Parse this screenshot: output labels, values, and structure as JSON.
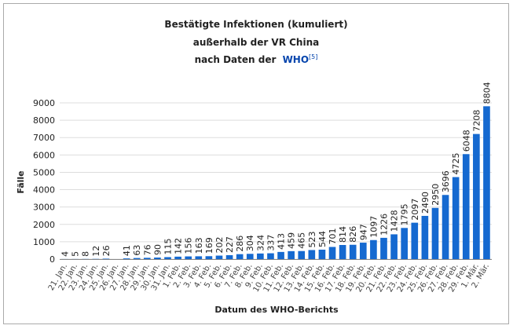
{
  "chart_data": {
    "type": "bar",
    "title_lines": [
      "Bestätigte Infektionen (kumuliert)",
      "außerhalb der VR China",
      "nach Daten der"
    ],
    "title_link": "WHO",
    "title_ref": "[5]",
    "xlabel": "Datum des WHO-Berichts",
    "ylabel": "Fälle",
    "categories": [
      "21. Jan.",
      "22. Jan.",
      "23. Jan.",
      "24. Jan.",
      "25. Jan.",
      "26. Jan.",
      "27. Jan.",
      "28. Jan.",
      "29. Jan.",
      "30. Jan.",
      "31. Jan.",
      "1. Feb.",
      "2. Feb.",
      "3. Feb.",
      "4. Feb.",
      "5. Feb.",
      "6. Feb.",
      "7. Feb.",
      "8. Feb.",
      "9. Feb.",
      "10. Feb.",
      "11. Feb.",
      "12. Feb.",
      "13. Feb.",
      "14. Feb.",
      "15. Feb.",
      "16. Feb.",
      "17. Feb.",
      "18. Feb.",
      "19. Feb.",
      "20. Feb.",
      "21. Feb.",
      "22. Feb.",
      "23. Feb.",
      "24. Feb.",
      "25. Feb.",
      "26. Feb.",
      "27. Feb.",
      "28. Feb.",
      "29. Feb.",
      "1. Mär.",
      "2. Mär."
    ],
    "values": [
      4,
      5,
      8,
      12,
      26,
      null,
      41,
      63,
      76,
      90,
      115,
      142,
      156,
      163,
      169,
      202,
      227,
      286,
      304,
      324,
      337,
      413,
      459,
      465,
      523,
      544,
      701,
      814,
      826,
      947,
      1097,
      1226,
      1428,
      1795,
      2097,
      2490,
      2950,
      3696,
      4725,
      6048,
      7208,
      8804
    ],
    "color": "#1569d0",
    "ylim": [
      0,
      9000
    ],
    "yticks": [
      0,
      1000,
      2000,
      3000,
      4000,
      5000,
      6000,
      7000,
      8000,
      9000
    ],
    "grid": true
  }
}
